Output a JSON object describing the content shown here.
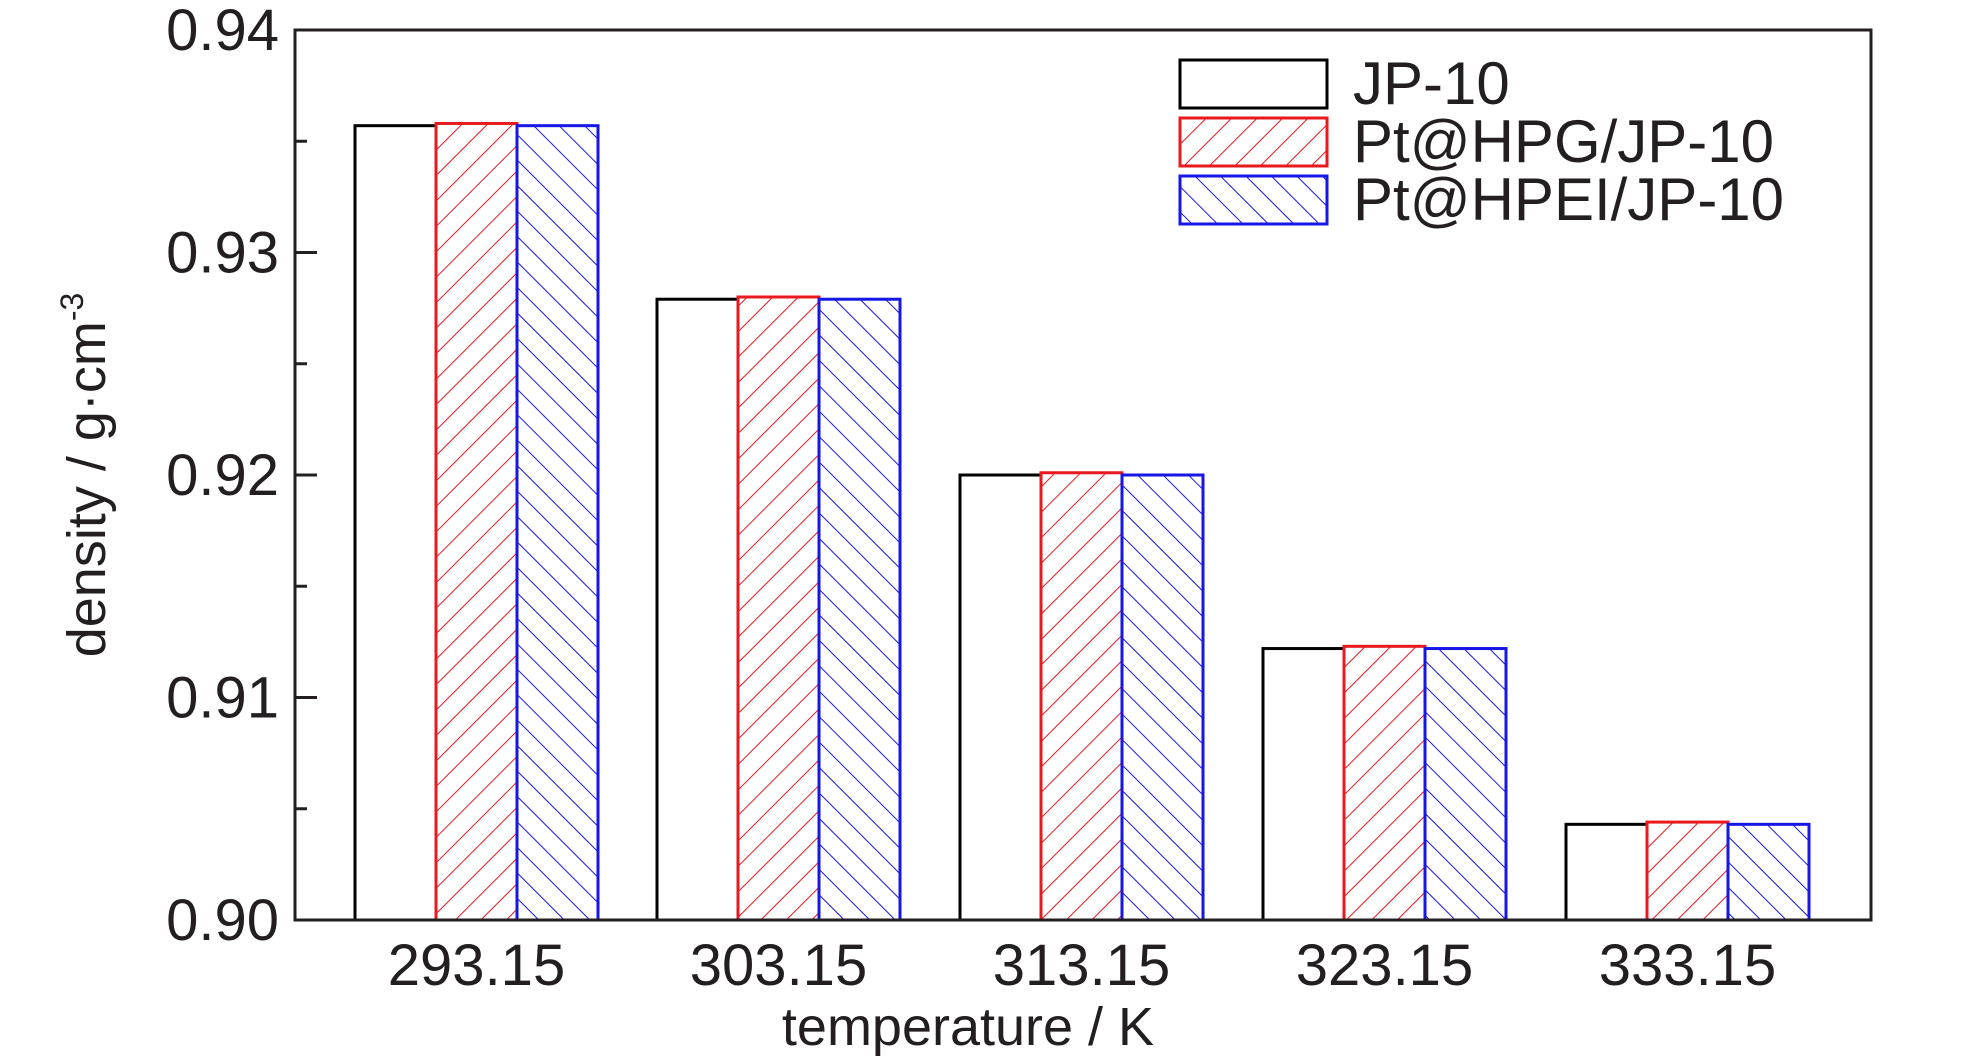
{
  "chart_data": {
    "type": "bar",
    "title": "",
    "xlabel": "temperature / K",
    "ylabel_main": "density / g·cm",
    "ylabel_sup": "-3",
    "categories": [
      "293.15",
      "303.15",
      "313.15",
      "323.15",
      "333.15"
    ],
    "ylim": [
      0.9,
      0.94
    ],
    "yticks": [
      "0.90",
      "0.91",
      "0.92",
      "0.93",
      "0.94"
    ],
    "grid": false,
    "legend_position": "top-right",
    "series": [
      {
        "name": "JP-10",
        "color": "#000000",
        "pattern": "none",
        "values": [
          0.9357,
          0.9279,
          0.92,
          0.9122,
          0.9043
        ]
      },
      {
        "name": "Pt@HPG/JP-10",
        "color": "#e8191f",
        "pattern": "hatch-forward",
        "values": [
          0.9358,
          0.928,
          0.9201,
          0.9123,
          0.9044
        ]
      },
      {
        "name": "Pt@HPEI/JP-10",
        "color": "#1616e6",
        "pattern": "hatch-back",
        "values": [
          0.9357,
          0.9279,
          0.92,
          0.9122,
          0.9043
        ]
      }
    ]
  }
}
